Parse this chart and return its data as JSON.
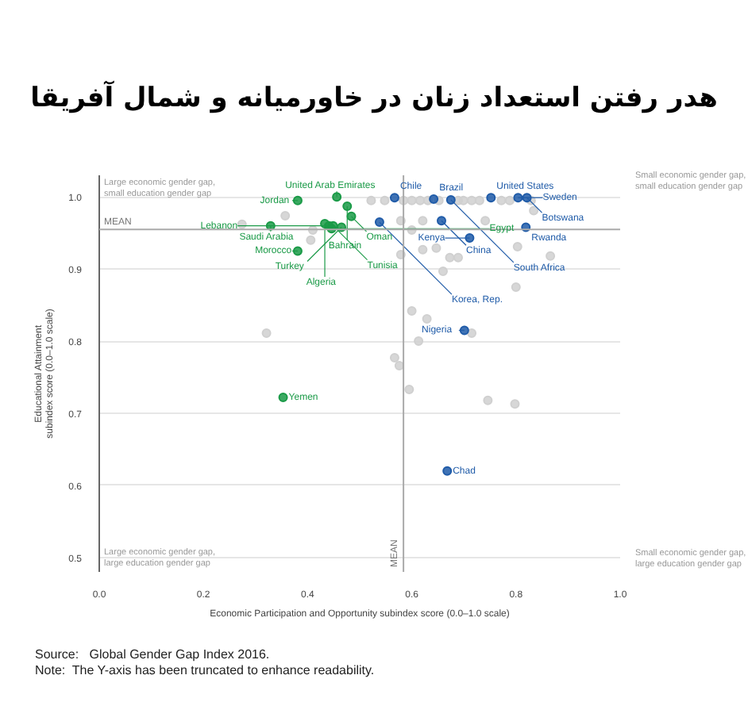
{
  "chart_data": {
    "type": "scatter",
    "title": "هدر رفتن استعداد زنان در خاورمیانه و شمال آفریقا",
    "xlabel": "Economic Participation and Opportunity subindex score (0.0–1.0 scale)",
    "ylabel": "Educational Attainment\nsubindex score (0.0–1.0 scale)",
    "xlim": [
      0,
      1
    ],
    "ylim": [
      0.48,
      1.03
    ],
    "xticks": [
      {
        "value": 0,
        "label": "0.0"
      },
      0.2,
      0.4,
      0.6,
      0.8,
      {
        "value": 1,
        "label": "1.0"
      }
    ],
    "yticks": [
      0.5,
      0.6,
      0.7,
      0.8,
      0.9,
      {
        "value": 1,
        "label": "1.0"
      }
    ],
    "grid": "y",
    "marker": "circle",
    "series": [
      {
        "color": "#d0d0d0",
        "x": [
          0.274,
          0.357,
          0.41,
          0.406,
          0.321,
          0.522,
          0.548,
          0.584,
          0.6,
          0.616,
          0.631,
          0.652,
          0.689,
          0.699,
          0.715,
          0.73,
          0.772,
          0.788,
          0.829,
          0.579,
          0.6,
          0.621,
          0.579,
          0.621,
          0.647,
          0.673,
          0.689,
          0.66,
          0.741,
          0.803,
          0.8,
          0.866,
          0.834,
          0.6,
          0.629,
          0.613,
          0.715,
          0.567,
          0.576,
          0.595,
          0.746,
          0.798
        ],
        "values": [
          0.962,
          0.974,
          0.954,
          0.94,
          0.811,
          0.995,
          0.995,
          0.995,
          0.995,
          0.995,
          0.995,
          0.995,
          0.995,
          0.995,
          0.995,
          0.995,
          0.995,
          0.995,
          0.995,
          0.967,
          0.954,
          0.967,
          0.92,
          0.927,
          0.929,
          0.916,
          0.916,
          0.897,
          0.967,
          0.931,
          0.875,
          0.918,
          0.981,
          0.842,
          0.831,
          0.8,
          0.811,
          0.777,
          0.766,
          0.733,
          0.718,
          0.713
        ]
      },
      {
        "color": "#1f5ba8",
        "x": [
          0.567,
          0.538,
          0.642,
          0.675,
          0.657,
          0.752,
          0.711,
          0.804,
          0.821,
          0.819,
          0.701,
          0.668
        ],
        "values": [
          0.999,
          0.965,
          0.997,
          0.996,
          0.967,
          0.999,
          0.943,
          0.999,
          0.999,
          0.958,
          0.815,
          0.62
        ]
      },
      {
        "color": "#1a9a47",
        "x": [
          0.381,
          0.456,
          0.476,
          0.484,
          0.329,
          0.381,
          0.465,
          0.433,
          0.441,
          0.446,
          0.449,
          0.353
        ],
        "values": [
          0.995,
          1.0,
          0.987,
          0.973,
          0.96,
          0.925,
          0.958,
          0.963,
          0.96,
          0.956,
          0.96,
          0.722
        ]
      }
    ],
    "ref_lines": [
      {
        "axis": "y",
        "value": 0.955,
        "label": "MEAN",
        "color": "#aaaaaa"
      },
      {
        "axis": "x",
        "value": 0.584,
        "label": "MEAN",
        "color": "#aaaaaa"
      }
    ],
    "annotations": [
      "Large economic gender gap,\nsmall education gender gap",
      "Small economic gender gap,\nsmall education gender gap",
      "Large economic gender gap,\nlarge education gender gap",
      "Small economic gender gap,\nlarge education gender gap",
      "Source:   Global Gender Gap Index 2016.",
      "Note:  The Y-axis has been truncated to enhance readability.",
      {
        "text": "United Arab Emirates",
        "x": 0.456,
        "y": 1.0
      },
      {
        "text": "Jordan",
        "x": 0.381,
        "y": 0.995
      },
      {
        "text": "Bahrain",
        "x": 0.476,
        "y": 0.987
      },
      {
        "text": "Oman",
        "x": 0.484,
        "y": 0.973
      },
      {
        "text": "Saudi Arabia",
        "x": 0.329,
        "y": 0.96
      },
      {
        "text": "Morocco",
        "x": 0.381,
        "y": 0.925
      },
      {
        "text": "Turkey",
        "x": 0.465,
        "y": 0.958
      },
      {
        "text": "Algeria",
        "x": 0.433,
        "y": 0.963
      },
      {
        "text": "Lebanon",
        "x": 0.441,
        "y": 0.96
      },
      {
        "text": "Egypt",
        "x": 0.446,
        "y": 0.956
      },
      {
        "text": "Tunisia",
        "x": 0.449,
        "y": 0.96
      },
      {
        "text": "Yemen",
        "x": 0.353,
        "y": 0.722
      },
      {
        "text": "Chile",
        "x": 0.567,
        "y": 0.999
      },
      {
        "text": "Korea, Rep.",
        "x": 0.538,
        "y": 0.965
      },
      {
        "text": "Brazil",
        "x": 0.642,
        "y": 0.997
      },
      {
        "text": "South Africa",
        "x": 0.675,
        "y": 0.996
      },
      {
        "text": "China",
        "x": 0.657,
        "y": 0.967
      },
      {
        "text": "United States",
        "x": 0.752,
        "y": 0.999
      },
      {
        "text": "Kenya",
        "x": 0.711,
        "y": 0.943
      },
      {
        "text": "Sweden",
        "x": 0.804,
        "y": 0.999
      },
      {
        "text": "Botswana",
        "x": 0.821,
        "y": 0.999
      },
      {
        "text": "Rwanda",
        "x": 0.819,
        "y": 0.958
      },
      {
        "text": "Nigeria",
        "x": 0.701,
        "y": 0.815
      },
      {
        "text": "Chad",
        "x": 0.668,
        "y": 0.62
      }
    ]
  }
}
